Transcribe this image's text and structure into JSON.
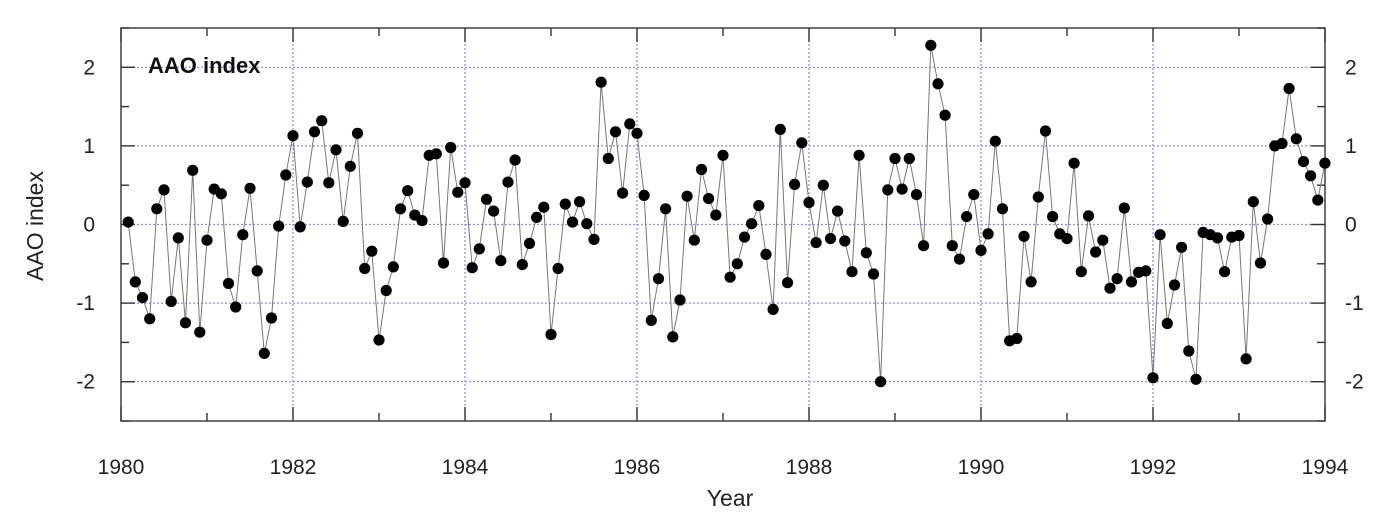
{
  "chart_data": {
    "type": "line",
    "title": "",
    "panel_label": "AAO index",
    "xlabel": "Year",
    "ylabel": "AAO index",
    "xlim": [
      1980,
      1994
    ],
    "ylim": [
      -2.5,
      2.5
    ],
    "x_ticks": [
      1980,
      1982,
      1984,
      1986,
      1988,
      1990,
      1992,
      1994
    ],
    "y_ticks": [
      -2,
      -1,
      0,
      1,
      2
    ],
    "y_tick_labels": [
      "-2",
      "-1",
      "0",
      "1",
      "2"
    ],
    "grid": true,
    "line_color": "#777777",
    "marker_color": "#000000",
    "grid_color": "#8a8af0",
    "series": [
      {
        "x_start": 1980.0833,
        "x_step": 0.08333,
        "values": [
          0.03,
          -0.73,
          -0.93,
          -1.2,
          0.2,
          0.44,
          -0.98,
          -0.17,
          -1.25,
          0.69,
          -1.37,
          -0.2,
          0.45,
          0.39,
          -0.75,
          -1.05,
          -0.13,
          0.46,
          -0.59,
          -1.64,
          -1.19,
          -0.02,
          0.63,
          1.13,
          -0.03,
          0.54,
          1.18,
          1.32,
          0.53,
          0.95,
          0.04,
          0.74,
          1.16,
          -0.56,
          -0.34,
          -1.47,
          -0.84,
          -0.54,
          0.2,
          0.43,
          0.12,
          0.05,
          0.88,
          0.9,
          -0.49,
          0.98,
          0.41,
          0.53,
          -0.55,
          -0.31,
          0.32,
          0.17,
          -0.46,
          0.54,
          0.82,
          -0.51,
          -0.24,
          0.09,
          0.22,
          -1.4,
          -0.56,
          0.26,
          0.03,
          0.29,
          0.01,
          -0.19,
          1.81,
          0.84,
          1.18,
          0.4,
          1.28,
          1.16,
          0.37,
          -1.22,
          -0.69,
          0.2,
          -1.43,
          -0.96,
          0.36,
          -0.2,
          0.7,
          0.33,
          0.12,
          0.88,
          -0.67,
          -0.5,
          -0.16,
          0.01,
          0.24,
          -0.38,
          -1.08,
          1.21,
          -0.74,
          0.51,
          1.04,
          0.28,
          -0.23,
          0.5,
          -0.18,
          0.17,
          -0.21,
          -0.6,
          0.88,
          -0.36,
          -0.63,
          -2.0,
          0.44,
          0.84,
          0.45,
          0.84,
          0.38,
          -0.27,
          2.28,
          1.79,
          1.39,
          -0.27,
          -0.44,
          0.1,
          0.38,
          -0.33,
          -0.12,
          1.06,
          0.2,
          -1.48,
          -1.45,
          -0.15,
          -0.73,
          0.35,
          1.19,
          0.1,
          -0.12,
          -0.18,
          0.78,
          -0.6,
          0.11,
          -0.35,
          -0.2,
          -0.81,
          -0.69,
          0.21,
          -0.73,
          -0.61,
          -0.59,
          -1.95,
          -0.13,
          -1.26,
          -0.77,
          -0.29,
          -1.61,
          -1.97,
          -0.1,
          -0.13,
          -0.17,
          -0.6,
          -0.16,
          -0.14,
          -1.71,
          0.29,
          -0.49,
          0.07,
          1.0,
          1.03,
          1.73,
          1.09,
          0.8,
          0.62,
          0.31,
          0.78
        ]
      }
    ]
  }
}
